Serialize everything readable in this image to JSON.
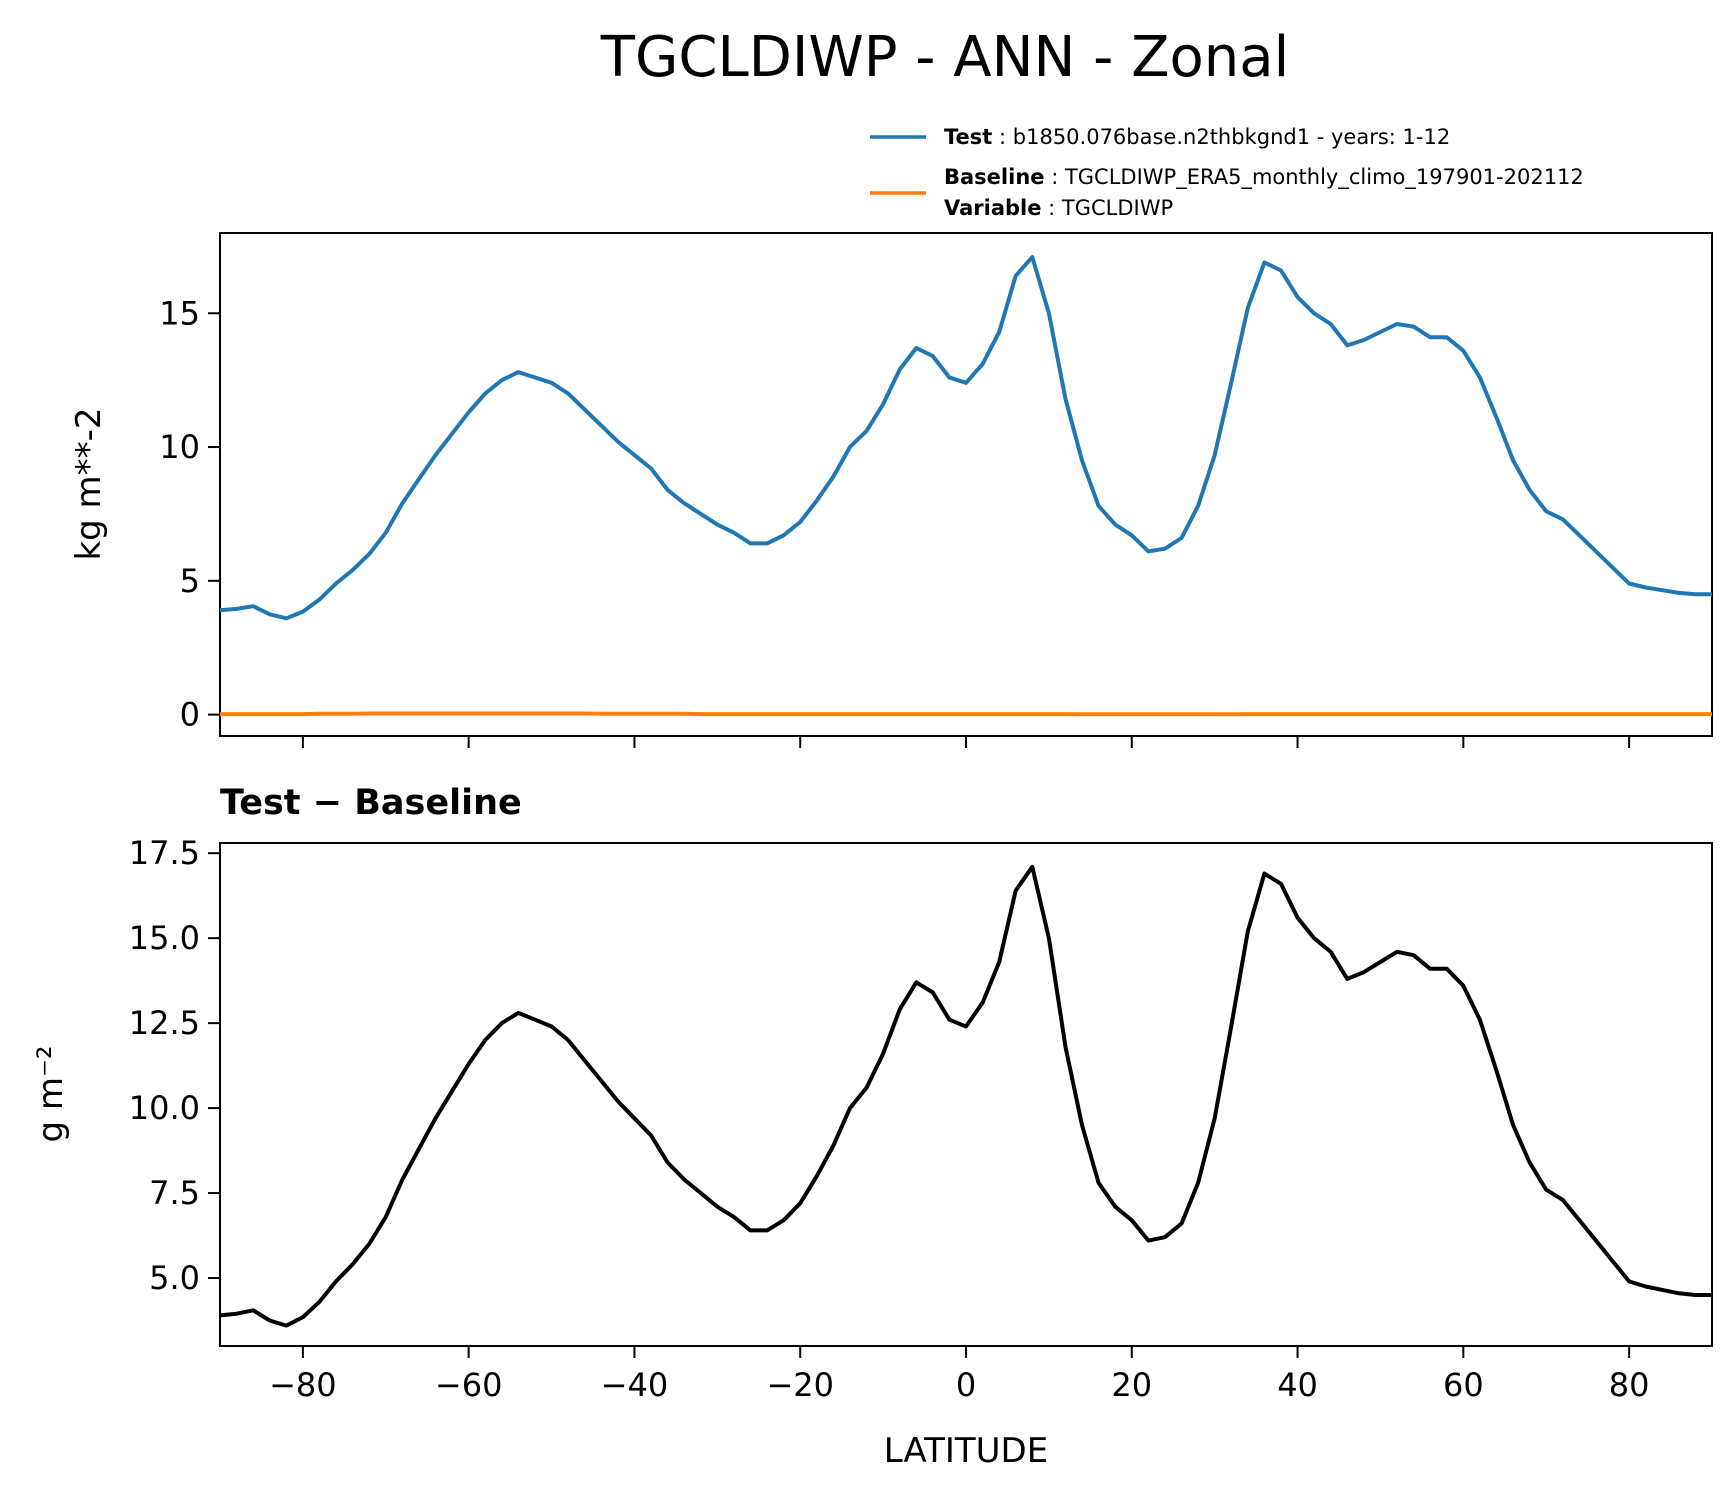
{
  "title": "TGCLDIWP - ANN - Zonal",
  "colors": {
    "test": "#1f77b4",
    "baseline": "#ff7f0e",
    "diff": "#000000"
  },
  "legend": {
    "placement": "above top-right",
    "test_key": "Test",
    "test_text": "b1850.076base.n2thbkgnd1 - years: 1-12",
    "baseline_key": "Baseline",
    "baseline_text": "TGCLDIWP_ERA5_monthly_climo_197901-202112",
    "variable_key": "Variable",
    "variable_text": "TGCLDIWP"
  },
  "diff_title": "Test − Baseline",
  "chart_data": [
    {
      "type": "line",
      "title": "",
      "xlabel": "",
      "ylabel": "kg m**-2",
      "xlim": [
        -90,
        90
      ],
      "ylim": [
        -0.8,
        18
      ],
      "xticks": [
        -80,
        -60,
        -40,
        -20,
        0,
        20,
        40,
        60,
        80
      ],
      "yticks": [
        0,
        5,
        10,
        15
      ],
      "ytick_labels": [
        "0",
        "5",
        "10",
        "15"
      ],
      "grid": false,
      "x": [
        -90,
        -88,
        -86,
        -84,
        -82,
        -80,
        -78,
        -76,
        -74,
        -72,
        -70,
        -68,
        -66,
        -64,
        -62,
        -60,
        -58,
        -56,
        -54,
        -52,
        -50,
        -48,
        -46,
        -44,
        -42,
        -40,
        -38,
        -36,
        -34,
        -32,
        -30,
        -28,
        -26,
        -24,
        -22,
        -20,
        -18,
        -16,
        -14,
        -12,
        -10,
        -8,
        -6,
        -4,
        -2,
        0,
        2,
        4,
        6,
        8,
        10,
        12,
        14,
        16,
        18,
        20,
        22,
        24,
        26,
        28,
        30,
        32,
        34,
        36,
        38,
        40,
        42,
        44,
        46,
        48,
        50,
        52,
        54,
        56,
        58,
        60,
        62,
        64,
        66,
        68,
        70,
        72,
        74,
        76,
        78,
        80,
        82,
        84,
        86,
        88,
        90
      ],
      "series": [
        {
          "name": "Test",
          "values": [
            3.9,
            3.95,
            4.05,
            3.75,
            3.6,
            3.85,
            4.3,
            4.9,
            5.4,
            6.0,
            6.8,
            7.9,
            8.8,
            9.7,
            10.5,
            11.3,
            12.0,
            12.5,
            12.8,
            12.6,
            12.4,
            12.0,
            11.4,
            10.8,
            10.2,
            9.7,
            9.2,
            8.4,
            7.9,
            7.5,
            7.1,
            6.8,
            6.4,
            6.4,
            6.7,
            7.2,
            8.0,
            8.9,
            10.0,
            10.6,
            11.6,
            12.9,
            13.7,
            13.4,
            12.6,
            12.4,
            13.1,
            14.3,
            16.4,
            17.1,
            15.0,
            11.8,
            9.5,
            7.8,
            7.1,
            6.7,
            6.1,
            6.2,
            6.6,
            7.8,
            9.7,
            12.4,
            15.2,
            16.9,
            16.6,
            15.6,
            15.0,
            14.6,
            13.8,
            14.0,
            14.3,
            14.6,
            14.5,
            14.1,
            14.1,
            13.6,
            12.6,
            11.1,
            9.5,
            8.4,
            7.6,
            7.3,
            6.7,
            6.1,
            5.5,
            4.9,
            4.75,
            4.65,
            4.55,
            4.5,
            4.5
          ]
        },
        {
          "name": "Baseline",
          "values": [
            0.02,
            0.02,
            0.02,
            0.02,
            0.02,
            0.02,
            0.03,
            0.03,
            0.03,
            0.04,
            0.04,
            0.04,
            0.04,
            0.04,
            0.04,
            0.04,
            0.04,
            0.04,
            0.04,
            0.04,
            0.04,
            0.04,
            0.04,
            0.03,
            0.03,
            0.03,
            0.03,
            0.03,
            0.03,
            0.02,
            0.02,
            0.02,
            0.02,
            0.02,
            0.02,
            0.02,
            0.02,
            0.02,
            0.02,
            0.02,
            0.02,
            0.02,
            0.02,
            0.02,
            0.02,
            0.02,
            0.02,
            0.02,
            0.02,
            0.02,
            0.02,
            0.02,
            0.01,
            0.01,
            0.01,
            0.01,
            0.01,
            0.01,
            0.01,
            0.01,
            0.01,
            0.01,
            0.02,
            0.02,
            0.02,
            0.02,
            0.02,
            0.02,
            0.02,
            0.02,
            0.02,
            0.02,
            0.02,
            0.02,
            0.02,
            0.02,
            0.02,
            0.02,
            0.02,
            0.02,
            0.02,
            0.02,
            0.02,
            0.02,
            0.02,
            0.02,
            0.02,
            0.02,
            0.02,
            0.02,
            0.02
          ]
        }
      ]
    },
    {
      "type": "line",
      "title": "Test − Baseline",
      "xlabel": "LATITUDE",
      "ylabel": "g m⁻²",
      "xlim": [
        -90,
        90
      ],
      "ylim": [
        3.0,
        17.8
      ],
      "xticks": [
        -80,
        -60,
        -40,
        -20,
        0,
        20,
        40,
        60,
        80
      ],
      "xtick_labels": [
        "−80",
        "−60",
        "−40",
        "−20",
        "0",
        "20",
        "40",
        "60",
        "80"
      ],
      "yticks": [
        5.0,
        7.5,
        10.0,
        12.5,
        15.0,
        17.5
      ],
      "ytick_labels": [
        "5.0",
        "7.5",
        "10.0",
        "12.5",
        "15.0",
        "17.5"
      ],
      "grid": false,
      "x": [
        -90,
        -88,
        -86,
        -84,
        -82,
        -80,
        -78,
        -76,
        -74,
        -72,
        -70,
        -68,
        -66,
        -64,
        -62,
        -60,
        -58,
        -56,
        -54,
        -52,
        -50,
        -48,
        -46,
        -44,
        -42,
        -40,
        -38,
        -36,
        -34,
        -32,
        -30,
        -28,
        -26,
        -24,
        -22,
        -20,
        -18,
        -16,
        -14,
        -12,
        -10,
        -8,
        -6,
        -4,
        -2,
        0,
        2,
        4,
        6,
        8,
        10,
        12,
        14,
        16,
        18,
        20,
        22,
        24,
        26,
        28,
        30,
        32,
        34,
        36,
        38,
        40,
        42,
        44,
        46,
        48,
        50,
        52,
        54,
        56,
        58,
        60,
        62,
        64,
        66,
        68,
        70,
        72,
        74,
        76,
        78,
        80,
        82,
        84,
        86,
        88,
        90
      ],
      "series": [
        {
          "name": "",
          "values": [
            3.9,
            3.95,
            4.05,
            3.75,
            3.6,
            3.85,
            4.3,
            4.9,
            5.4,
            6.0,
            6.8,
            7.9,
            8.8,
            9.7,
            10.5,
            11.3,
            12.0,
            12.5,
            12.8,
            12.6,
            12.4,
            12.0,
            11.4,
            10.8,
            10.2,
            9.7,
            9.2,
            8.4,
            7.9,
            7.5,
            7.1,
            6.8,
            6.4,
            6.4,
            6.7,
            7.2,
            8.0,
            8.9,
            10.0,
            10.6,
            11.6,
            12.9,
            13.7,
            13.4,
            12.6,
            12.4,
            13.1,
            14.3,
            16.4,
            17.1,
            15.0,
            11.8,
            9.5,
            7.8,
            7.1,
            6.7,
            6.1,
            6.2,
            6.6,
            7.8,
            9.7,
            12.4,
            15.2,
            16.9,
            16.6,
            15.6,
            15.0,
            14.6,
            13.8,
            14.0,
            14.3,
            14.6,
            14.5,
            14.1,
            14.1,
            13.6,
            12.6,
            11.1,
            9.5,
            8.4,
            7.6,
            7.3,
            6.7,
            6.1,
            5.5,
            4.9,
            4.75,
            4.65,
            4.55,
            4.5,
            4.5
          ]
        }
      ]
    }
  ]
}
